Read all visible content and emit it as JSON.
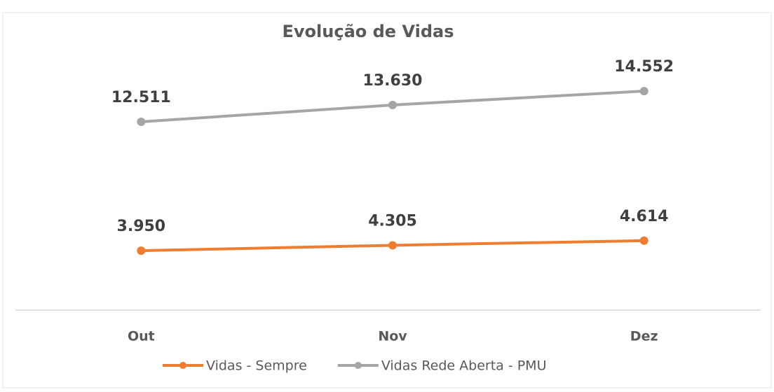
{
  "chart_data": {
    "type": "line",
    "title": "Evolução de Vidas",
    "categories": [
      "Out",
      "Nov",
      "Dez"
    ],
    "series": [
      {
        "name": "Vidas - Sempre",
        "color": "#ed7d31",
        "values": [
          3950,
          4305,
          4614
        ],
        "value_labels": [
          "3.950",
          "4.305",
          "4.614"
        ]
      },
      {
        "name": "Vidas Rede Aberta - PMU",
        "color": "#a5a5a5",
        "values": [
          12511,
          13630,
          14552
        ],
        "value_labels": [
          "12.511",
          "13.630",
          "14.552"
        ]
      }
    ],
    "ylim": [
      0,
      18000
    ],
    "legend": "bottom"
  }
}
